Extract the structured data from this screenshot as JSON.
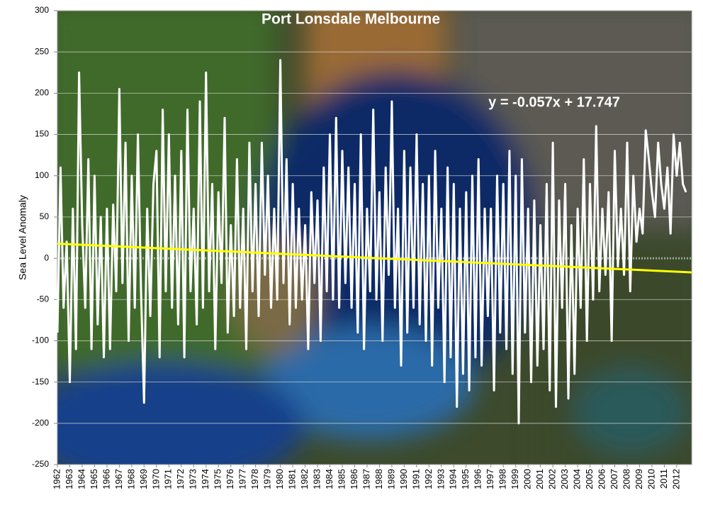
{
  "chart_data": {
    "type": "line",
    "title": "Port Lonsdale Melbourne",
    "y_label": "Sea Level Anomaly",
    "annotation": "y = -0.057x + 17.747",
    "ylim": [
      -250,
      300
    ],
    "yticks": [
      -250,
      -200,
      -150,
      -100,
      -50,
      0,
      50,
      100,
      150,
      200,
      250,
      300
    ],
    "grid": true,
    "categories": [
      "1962",
      null,
      null,
      null,
      "1963",
      null,
      null,
      null,
      "1964",
      null,
      null,
      null,
      "1965",
      null,
      null,
      null,
      "1966",
      null,
      null,
      null,
      "1967",
      null,
      null,
      null,
      "1968",
      null,
      null,
      null,
      "1969",
      null,
      null,
      null,
      "1970",
      null,
      null,
      null,
      "1971",
      null,
      null,
      null,
      "1972",
      null,
      null,
      null,
      "1973",
      null,
      null,
      null,
      "1974",
      null,
      null,
      null,
      "1975",
      null,
      null,
      null,
      "1976",
      null,
      null,
      null,
      "1977",
      null,
      null,
      null,
      "1978",
      null,
      null,
      null,
      "1979",
      null,
      null,
      null,
      "1980",
      null,
      null,
      null,
      "1981",
      null,
      null,
      null,
      "1982",
      null,
      null,
      null,
      "1983",
      null,
      null,
      null,
      "1984",
      null,
      null,
      null,
      "1985",
      null,
      null,
      null,
      "1986",
      null,
      null,
      null,
      "1987",
      null,
      null,
      null,
      "1988",
      null,
      null,
      null,
      "1989",
      null,
      null,
      null,
      "1990",
      null,
      null,
      null,
      "1991",
      null,
      null,
      null,
      "1992",
      null,
      null,
      null,
      "1993",
      null,
      null,
      null,
      "1994",
      null,
      null,
      null,
      "1995",
      null,
      null,
      null,
      "1996",
      null,
      null,
      null,
      "1997",
      null,
      null,
      null,
      "1998",
      null,
      null,
      null,
      "1999",
      null,
      null,
      null,
      "2000",
      null,
      null,
      null,
      "2001",
      null,
      null,
      null,
      "2002",
      null,
      null,
      null,
      "2003",
      null,
      null,
      null,
      "2004",
      null,
      null,
      null,
      "2005",
      null,
      null,
      null,
      "2006",
      null,
      null,
      null,
      "2007",
      null,
      null,
      null,
      "2008",
      null,
      null,
      null,
      "2009",
      null,
      null,
      null,
      "2010",
      null,
      null,
      null,
      "2011",
      null,
      null,
      null,
      "2012",
      null,
      null,
      null
    ],
    "series": [
      {
        "color": "#ffffff",
        "values": [
          -90,
          110,
          -60,
          20,
          -150,
          60,
          -110,
          225,
          40,
          -60,
          120,
          -110,
          100,
          -80,
          50,
          -120,
          60,
          -110,
          65,
          -40,
          205,
          -30,
          140,
          -100,
          100,
          -60,
          150,
          -40,
          -175,
          60,
          -70,
          90,
          130,
          -120,
          180,
          -40,
          150,
          -60,
          100,
          -80,
          130,
          -120,
          180,
          -40,
          60,
          -80,
          190,
          -60,
          225,
          -40,
          90,
          -110,
          80,
          -30,
          170,
          -90,
          40,
          -70,
          120,
          -60,
          60,
          -110,
          140,
          -40,
          90,
          -70,
          140,
          -20,
          100,
          -60,
          60,
          -50,
          240,
          -30,
          120,
          -80,
          90,
          -60,
          60,
          -50,
          40,
          -110,
          80,
          -30,
          70,
          -100,
          110,
          -40,
          150,
          -50,
          170,
          -60,
          130,
          -30,
          110,
          -60,
          90,
          -90,
          150,
          -110,
          60,
          -40,
          180,
          -50,
          80,
          -100,
          110,
          -20,
          190,
          -60,
          60,
          -130,
          130,
          -90,
          110,
          -60,
          150,
          -80,
          90,
          -100,
          100,
          -130,
          130,
          -60,
          60,
          -150,
          110,
          -120,
          90,
          -180,
          60,
          -140,
          80,
          -160,
          100,
          -120,
          120,
          -130,
          60,
          -70,
          60,
          -160,
          100,
          -90,
          90,
          -110,
          130,
          -140,
          100,
          -200,
          120,
          -90,
          60,
          -150,
          70,
          -130,
          40,
          -110,
          90,
          -160,
          140,
          -180,
          70,
          -60,
          90,
          -170,
          40,
          -140,
          60,
          -60,
          120,
          -100,
          90,
          -50,
          160,
          -40,
          60,
          -20,
          80,
          -100,
          130,
          -10,
          60,
          -20,
          140,
          -40,
          100,
          20,
          60,
          30,
          155,
          120,
          80,
          50,
          140,
          90,
          60,
          110,
          30,
          150,
          100,
          140,
          90,
          80
        ]
      }
    ],
    "trend": {
      "color": "#ffff00",
      "values": [
        17.7,
        -17.1
      ]
    }
  }
}
